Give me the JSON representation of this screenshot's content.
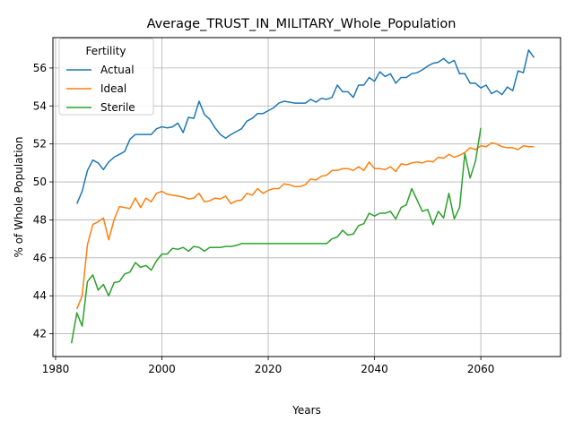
{
  "chart_data": {
    "type": "line",
    "title": "Average_TRUST_IN_MILITARY_Whole_Population",
    "xlabel": "Years",
    "ylabel": "% of Whole Population",
    "xlim": [
      1979.5,
      2075
    ],
    "ylim": [
      40.8,
      57.6
    ],
    "xticks": [
      1980,
      2000,
      2020,
      2040,
      2060
    ],
    "yticks": [
      42,
      44,
      46,
      48,
      50,
      52,
      54,
      56
    ],
    "grid": true,
    "legend": {
      "title": "Fertility",
      "placement": "top-left",
      "entries": [
        "Actual",
        "Ideal",
        "Sterile"
      ]
    },
    "colors": {
      "Actual": "#1f77b4",
      "Ideal": "#ff7f0e",
      "Sterile": "#2ca02c"
    },
    "series": [
      {
        "name": "Actual",
        "x": [
          1984,
          1985,
          1986,
          1987,
          1988,
          1989,
          1990,
          1991,
          1992,
          1993,
          1994,
          1995,
          1996,
          1997,
          1998,
          1999,
          2000,
          2001,
          2002,
          2003,
          2004,
          2005,
          2006,
          2007,
          2008,
          2009,
          2010,
          2011,
          2012,
          2013,
          2014,
          2015,
          2016,
          2017,
          2018,
          2019,
          2020,
          2021,
          2022,
          2023,
          2024,
          2025,
          2026,
          2027,
          2028,
          2029,
          2030,
          2031,
          2032,
          2033,
          2034,
          2035,
          2036,
          2037,
          2038,
          2039,
          2040,
          2041,
          2042,
          2043,
          2044,
          2045,
          2046,
          2047,
          2048,
          2049,
          2050,
          2051,
          2052,
          2053,
          2054,
          2055,
          2056,
          2057,
          2058,
          2059,
          2060,
          2061,
          2062,
          2063,
          2064,
          2065,
          2066,
          2067,
          2068,
          2069,
          2070
        ],
        "y": [
          48.85,
          49.5,
          50.6,
          51.15,
          51.0,
          50.65,
          51.05,
          51.3,
          51.45,
          51.6,
          52.25,
          52.5,
          52.5,
          52.5,
          52.5,
          52.8,
          52.9,
          52.85,
          52.9,
          53.1,
          52.6,
          53.4,
          53.35,
          54.25,
          53.55,
          53.3,
          52.85,
          52.5,
          52.3,
          52.5,
          52.65,
          52.8,
          53.2,
          53.35,
          53.6,
          53.6,
          53.75,
          53.9,
          54.15,
          54.25,
          54.2,
          54.15,
          54.15,
          54.15,
          54.35,
          54.2,
          54.4,
          54.35,
          54.45,
          55.1,
          54.75,
          54.75,
          54.45,
          55.1,
          55.1,
          55.5,
          55.3,
          55.8,
          55.55,
          55.7,
          55.2,
          55.5,
          55.5,
          55.7,
          55.75,
          55.9,
          56.1,
          56.25,
          56.3,
          56.5,
          56.25,
          56.4,
          55.7,
          55.7,
          55.2,
          55.2,
          54.95,
          55.1,
          54.65,
          54.8,
          54.6,
          55.0,
          54.8,
          55.85,
          55.75,
          56.95,
          56.55
        ]
      },
      {
        "name": "Ideal",
        "x": [
          1984,
          1985,
          1986,
          1987,
          1988,
          1989,
          1990,
          1991,
          1992,
          1993,
          1994,
          1995,
          1996,
          1997,
          1998,
          1999,
          2000,
          2001,
          2002,
          2003,
          2004,
          2005,
          2006,
          2007,
          2008,
          2009,
          2010,
          2011,
          2012,
          2013,
          2014,
          2015,
          2016,
          2017,
          2018,
          2019,
          2020,
          2021,
          2022,
          2023,
          2024,
          2025,
          2026,
          2027,
          2028,
          2029,
          2030,
          2031,
          2032,
          2033,
          2034,
          2035,
          2036,
          2037,
          2038,
          2039,
          2040,
          2041,
          2042,
          2043,
          2044,
          2045,
          2046,
          2047,
          2048,
          2049,
          2050,
          2051,
          2052,
          2053,
          2054,
          2055,
          2056,
          2057,
          2058,
          2059,
          2060,
          2061,
          2062,
          2063,
          2064,
          2065,
          2066,
          2067,
          2068,
          2069,
          2070
        ],
        "y": [
          43.3,
          44.0,
          46.7,
          47.75,
          47.9,
          48.1,
          46.95,
          48.0,
          48.7,
          48.65,
          48.6,
          49.15,
          48.65,
          49.15,
          48.95,
          49.4,
          49.5,
          49.35,
          49.3,
          49.25,
          49.2,
          49.1,
          49.15,
          49.4,
          48.95,
          49.0,
          49.15,
          49.1,
          49.25,
          48.85,
          49.0,
          49.05,
          49.4,
          49.3,
          49.65,
          49.4,
          49.55,
          49.65,
          49.65,
          49.9,
          49.85,
          49.75,
          49.75,
          49.85,
          50.15,
          50.1,
          50.3,
          50.35,
          50.6,
          50.6,
          50.7,
          50.7,
          50.6,
          50.8,
          50.6,
          51.05,
          50.7,
          50.7,
          50.65,
          50.8,
          50.55,
          50.95,
          50.9,
          51.0,
          51.05,
          51.0,
          51.1,
          51.05,
          51.3,
          51.25,
          51.45,
          51.3,
          51.4,
          51.55,
          51.8,
          51.7,
          51.9,
          51.85,
          52.05,
          52.0,
          51.85,
          51.8,
          51.8,
          51.7,
          51.9,
          51.85,
          51.85
        ]
      },
      {
        "name": "Sterile",
        "x": [
          1983,
          1984,
          1985,
          1986,
          1987,
          1988,
          1989,
          1990,
          1991,
          1992,
          1993,
          1994,
          1995,
          1996,
          1997,
          1998,
          1999,
          2000,
          2001,
          2002,
          2003,
          2004,
          2005,
          2006,
          2007,
          2008,
          2009,
          2010,
          2011,
          2012,
          2013,
          2014,
          2015,
          2016,
          2017,
          2018,
          2019,
          2020,
          2021,
          2022,
          2023,
          2024,
          2025,
          2026,
          2027,
          2028,
          2029,
          2030,
          2031,
          2032,
          2033,
          2034,
          2035,
          2036,
          2037,
          2038,
          2039,
          2040,
          2041,
          2042,
          2043,
          2044,
          2045,
          2046,
          2047,
          2048,
          2049,
          2050,
          2051,
          2052,
          2053,
          2054,
          2055,
          2056,
          2057,
          2058,
          2059,
          2060
        ],
        "y": [
          41.5,
          43.1,
          42.4,
          44.75,
          45.1,
          44.3,
          44.6,
          44.0,
          44.7,
          44.75,
          45.15,
          45.25,
          45.75,
          45.5,
          45.6,
          45.35,
          45.85,
          46.2,
          46.2,
          46.5,
          46.45,
          46.55,
          46.35,
          46.6,
          46.55,
          46.35,
          46.55,
          46.55,
          46.55,
          46.6,
          46.6,
          46.65,
          46.75,
          46.75,
          46.75,
          46.75,
          46.75,
          46.75,
          46.75,
          46.75,
          46.75,
          46.75,
          46.75,
          46.75,
          46.75,
          46.75,
          46.75,
          46.75,
          46.75,
          47.0,
          47.1,
          47.45,
          47.2,
          47.25,
          47.7,
          47.8,
          48.35,
          48.2,
          48.35,
          48.35,
          48.45,
          48.05,
          48.65,
          48.8,
          49.65,
          49.05,
          48.45,
          48.55,
          47.75,
          48.45,
          48.1,
          49.4,
          48.05,
          48.65,
          51.5,
          50.2,
          51.1,
          52.85
        ]
      }
    ]
  }
}
